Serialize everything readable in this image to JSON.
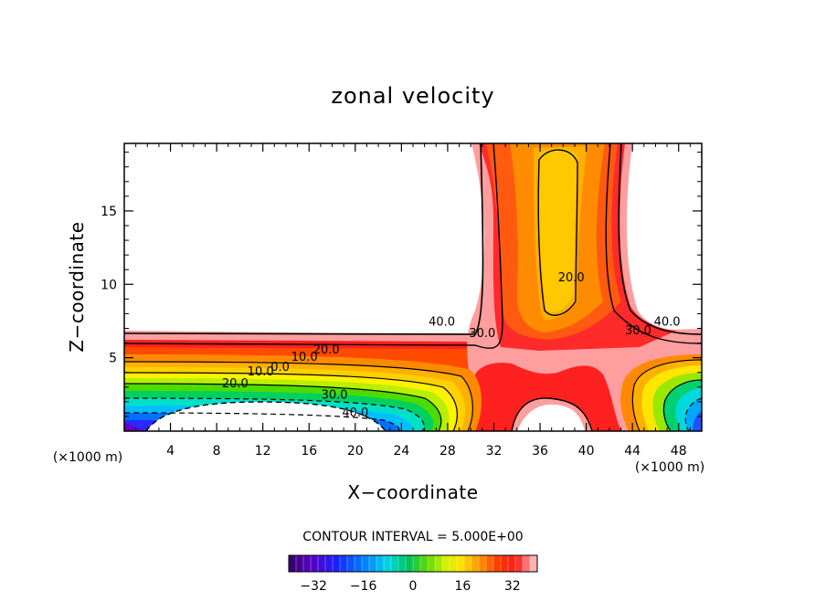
{
  "chart_data": {
    "type": "contour",
    "title": "zonal velocity",
    "xlabel": "X−coordinate",
    "ylabel": "Z−coordinate",
    "x_unit": "(×1000 m)",
    "xlim": [
      0,
      50
    ],
    "ylim": [
      0,
      19.6
    ],
    "x_ticks": [
      4,
      8,
      12,
      16,
      20,
      24,
      28,
      32,
      36,
      40,
      44,
      48
    ],
    "y_ticks": [
      5,
      10,
      15
    ],
    "contour_interval_text": "CONTOUR INTERVAL = 5.000E+00",
    "contour_labels": [
      {
        "text": "40.0",
        "x": 27.5,
        "y": 7.2
      },
      {
        "text": "30.0",
        "x": 31.0,
        "y": 6.4
      },
      {
        "text": "20.0",
        "x": 38.7,
        "y": 10.2
      },
      {
        "text": "30.0",
        "x": 44.5,
        "y": 6.6
      },
      {
        "text": "40.0",
        "x": 47.0,
        "y": 7.2
      },
      {
        "text": "20.0",
        "x": 17.5,
        "y": 5.3
      },
      {
        "text": "10.0",
        "x": 15.6,
        "y": 4.8
      },
      {
        "text": "0.0",
        "x": 13.5,
        "y": 4.1
      },
      {
        "text": "10.0",
        "x": 11.8,
        "y": 3.8
      },
      {
        "text": "20.0",
        "x": 9.6,
        "y": 3.0
      },
      {
        "text": "30.0",
        "x": 18.2,
        "y": 2.2
      },
      {
        "text": "40.0",
        "x": 20.0,
        "y": 1.0
      }
    ],
    "colorbar": {
      "min": -40,
      "max": 40,
      "ticks": [
        "−32",
        "−16",
        "0",
        "16",
        "32"
      ],
      "tick_values": [
        -32,
        -16,
        0,
        16,
        32
      ]
    }
  }
}
